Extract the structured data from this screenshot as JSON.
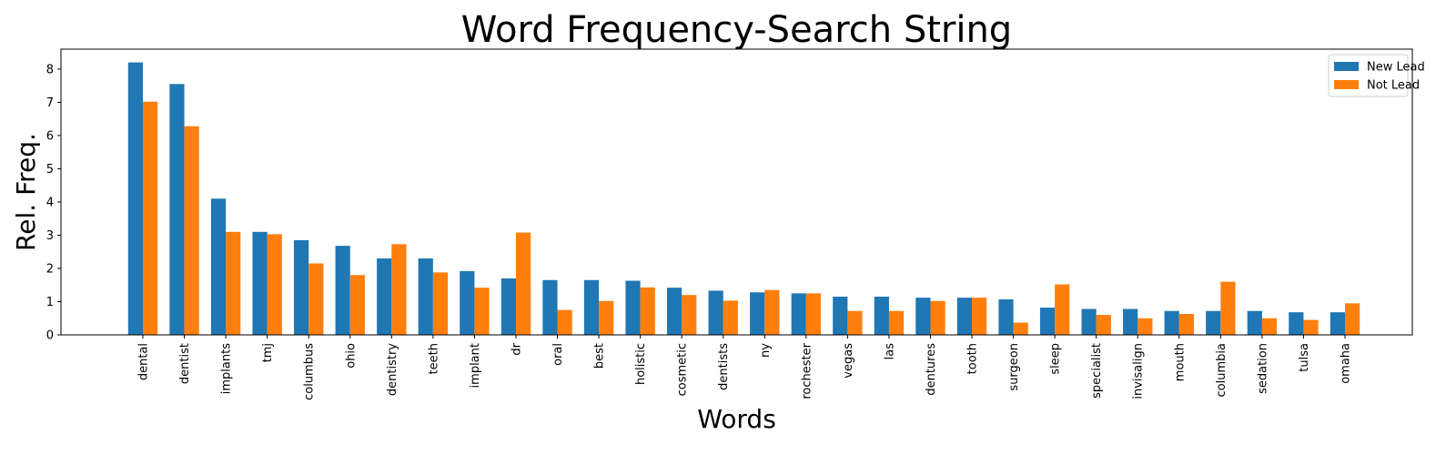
{
  "chart_data": {
    "type": "bar",
    "title": "Word Frequency-Search String",
    "xlabel": "Words",
    "ylabel": "Rel. Freq.",
    "ylim": [
      0,
      8.6
    ],
    "yticks": [
      0,
      1,
      2,
      3,
      4,
      5,
      6,
      7,
      8
    ],
    "legend_position": "top-right",
    "categories": [
      "dental",
      "dentist",
      "implants",
      "tmj",
      "columbus",
      "ohio",
      "dentistry",
      "teeth",
      "implant",
      "dr",
      "oral",
      "best",
      "holistic",
      "cosmetic",
      "dentists",
      "ny",
      "rochester",
      "vegas",
      "las",
      "dentures",
      "tooth",
      "surgeon",
      "sleep",
      "specialist",
      "invisalign",
      "mouth",
      "columbia",
      "sedation",
      "tulsa",
      "omaha"
    ],
    "series": [
      {
        "name": "New Lead",
        "color": "#1f77b4",
        "values": [
          8.2,
          7.55,
          4.1,
          3.1,
          2.85,
          2.68,
          2.3,
          2.3,
          1.92,
          1.7,
          1.65,
          1.65,
          1.63,
          1.42,
          1.33,
          1.28,
          1.25,
          1.15,
          1.15,
          1.12,
          1.12,
          1.07,
          0.82,
          0.78,
          0.78,
          0.72,
          0.72,
          0.72,
          0.68,
          0.68
        ]
      },
      {
        "name": "Not Lead",
        "color": "#ff7f0e",
        "values": [
          7.02,
          6.28,
          3.1,
          3.03,
          2.15,
          1.8,
          2.73,
          1.88,
          1.42,
          3.08,
          0.75,
          1.02,
          1.43,
          1.2,
          1.03,
          1.35,
          1.25,
          0.72,
          0.72,
          1.02,
          1.12,
          0.37,
          1.52,
          0.6,
          0.5,
          0.63,
          1.6,
          0.5,
          0.45,
          0.95
        ]
      }
    ]
  }
}
